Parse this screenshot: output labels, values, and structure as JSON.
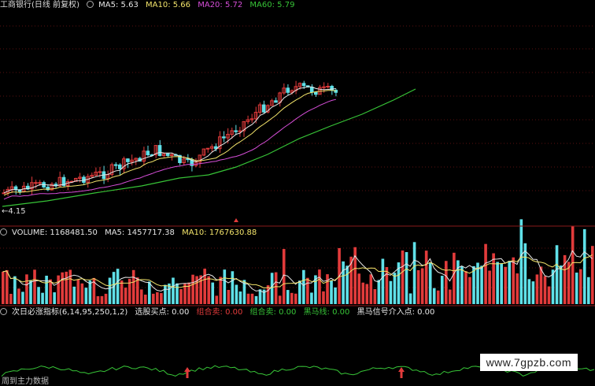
{
  "header": {
    "title": "工商银行(日线 前复权)",
    "ma5": "MA5: 5.63",
    "ma10": "MA10: 5.66",
    "ma20": "MA20: 5.72",
    "ma60": "MA60: 5.79"
  },
  "low_label": "←4.15",
  "volume_header": {
    "volume": "VOLUME: 1168481.50",
    "ma5": "MA5: 1457717.38",
    "ma10": "MA10: 1767630.88"
  },
  "indicator_header": {
    "name": "次日必涨指标(6,14,95,250,1,2)",
    "buy": "选股买点: 0.00",
    "sell1": "组合卖: 0.00",
    "sell2": "组合卖: 0.00",
    "heima": "黑马线: 0.00",
    "heima_signal": "黑马信号介入点: 0.00"
  },
  "bottom_text": "周到主力数据",
  "watermark": "www.7gpzb.com",
  "colors": {
    "up": "#e23b3b",
    "down": "#5fe0e8",
    "ma5": "#e6e6e6",
    "ma10": "#f2e36a",
    "ma20": "#d64ed8",
    "ma60": "#37c437",
    "separator": "#8a1a1a"
  }
}
